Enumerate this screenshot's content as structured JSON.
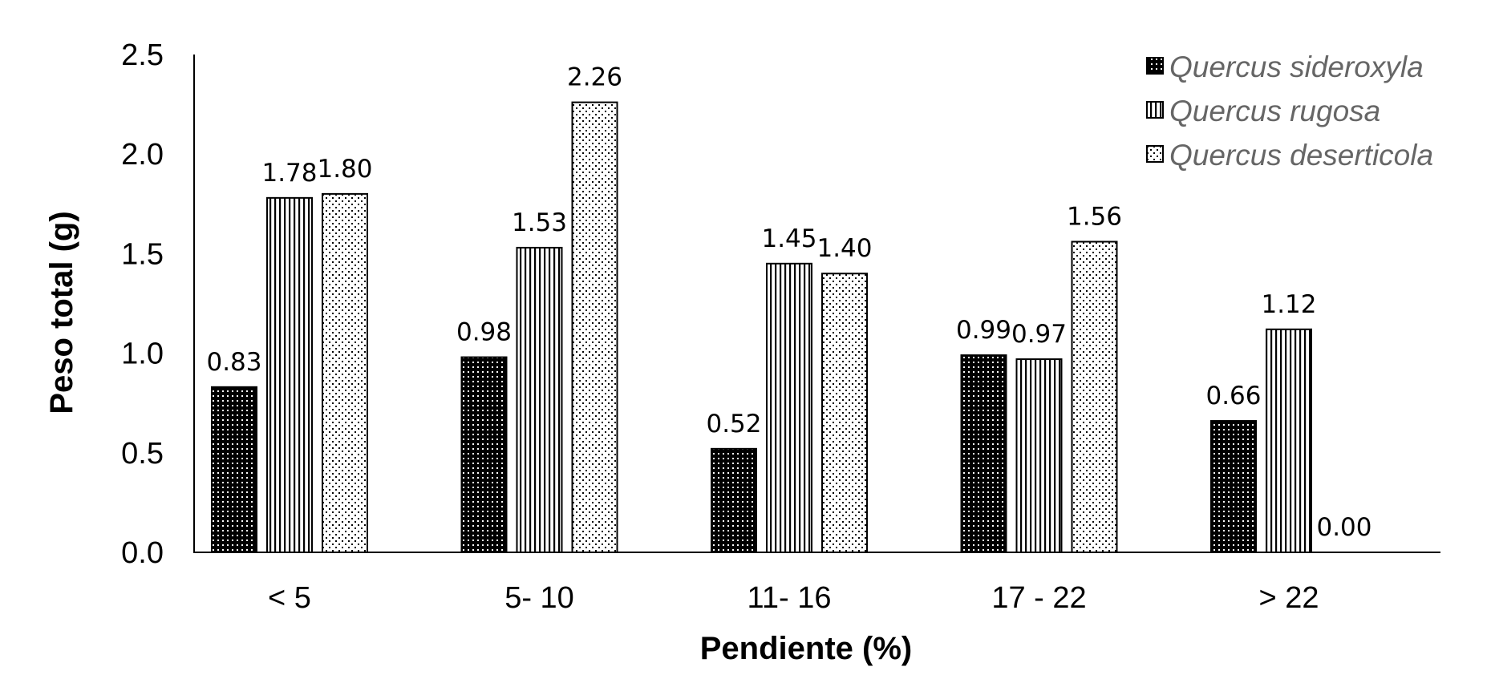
{
  "chart_data": {
    "type": "bar",
    "title": "",
    "xlabel": "Pendiente (%)",
    "ylabel": "Peso total (g)",
    "ylim": [
      0,
      2.5
    ],
    "yticks": [
      0.0,
      0.5,
      1.0,
      1.5,
      2.0,
      2.5
    ],
    "ytick_labels": [
      "0.0",
      "0.5",
      "1.0",
      "1.5",
      "2.0",
      "2.5"
    ],
    "categories": [
      "< 5",
      "5- 10",
      "11- 16",
      "17 - 22",
      "> 22"
    ],
    "grid": false,
    "legend_position": "top-right",
    "series": [
      {
        "name": "Quercus sideroxyla",
        "pattern": "dense-dots-dark",
        "values": [
          0.83,
          0.98,
          0.52,
          0.99,
          0.66
        ],
        "labels": [
          "0.83",
          "0.98",
          "0.52",
          "0.99",
          "0.66"
        ]
      },
      {
        "name": "Quercus rugosa",
        "pattern": "vertical-stripes",
        "values": [
          1.78,
          1.53,
          1.45,
          0.97,
          1.12
        ],
        "labels": [
          "1.78",
          "1.53",
          "1.45",
          "0.97",
          "1.12"
        ]
      },
      {
        "name": "Quercus deserticola",
        "pattern": "sparse-dots-light",
        "values": [
          1.8,
          2.26,
          1.4,
          1.56,
          0.0
        ],
        "labels": [
          "1.80",
          "2.26",
          "1.40",
          "1.56",
          "0.00"
        ]
      }
    ]
  },
  "colors": {
    "ink": "#000000",
    "legend_text": "#666666",
    "background": "#ffffff"
  }
}
